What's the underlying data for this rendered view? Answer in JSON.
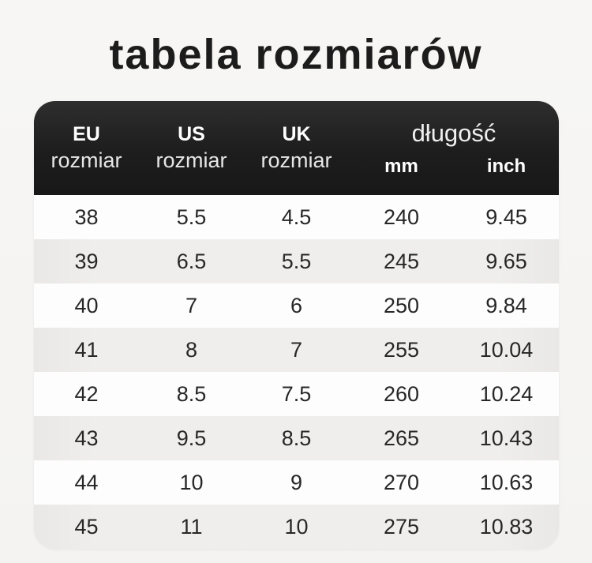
{
  "title": "tabela rozmiarów",
  "table": {
    "header": {
      "eu": {
        "line1": "EU",
        "line2": "rozmiar"
      },
      "us": {
        "line1": "US",
        "line2": "rozmiar"
      },
      "uk": {
        "line1": "UK",
        "line2": "rozmiar"
      },
      "length": {
        "label": "długość",
        "unit_mm": "mm",
        "unit_inch": "inch"
      }
    },
    "rows": [
      {
        "eu": "38",
        "us": "5.5",
        "uk": "4.5",
        "mm": "240",
        "inch": "9.45"
      },
      {
        "eu": "39",
        "us": "6.5",
        "uk": "5.5",
        "mm": "245",
        "inch": "9.65"
      },
      {
        "eu": "40",
        "us": "7",
        "uk": "6",
        "mm": "250",
        "inch": "9.84"
      },
      {
        "eu": "41",
        "us": "8",
        "uk": "7",
        "mm": "255",
        "inch": "10.04"
      },
      {
        "eu": "42",
        "us": "8.5",
        "uk": "7.5",
        "mm": "260",
        "inch": "10.24"
      },
      {
        "eu": "43",
        "us": "9.5",
        "uk": "8.5",
        "mm": "265",
        "inch": "10.43"
      },
      {
        "eu": "44",
        "us": "10",
        "uk": "9",
        "mm": "270",
        "inch": "10.63"
      },
      {
        "eu": "45",
        "us": "11",
        "uk": "10",
        "mm": "275",
        "inch": "10.83"
      }
    ]
  },
  "colors": {
    "page_bg": "#f6f5f3",
    "header_bg": "#1e1e1e",
    "header_text": "#ffffff",
    "row_bg": "#fdfdfd",
    "row_alt_bg": "#eeedec",
    "title_color": "#1c1c1c",
    "body_text": "#272727"
  },
  "chart_data": {
    "type": "table",
    "title": "tabela rozmiarów",
    "columns": [
      "EU rozmiar",
      "US rozmiar",
      "UK rozmiar",
      "długość mm",
      "długość inch"
    ],
    "rows": [
      [
        38,
        5.5,
        4.5,
        240,
        9.45
      ],
      [
        39,
        6.5,
        5.5,
        245,
        9.65
      ],
      [
        40,
        7,
        6,
        250,
        9.84
      ],
      [
        41,
        8,
        7,
        255,
        10.04
      ],
      [
        42,
        8.5,
        7.5,
        260,
        10.24
      ],
      [
        43,
        9.5,
        8.5,
        265,
        10.43
      ],
      [
        44,
        10,
        9,
        270,
        10.63
      ],
      [
        45,
        11,
        10,
        275,
        10.83
      ]
    ]
  }
}
